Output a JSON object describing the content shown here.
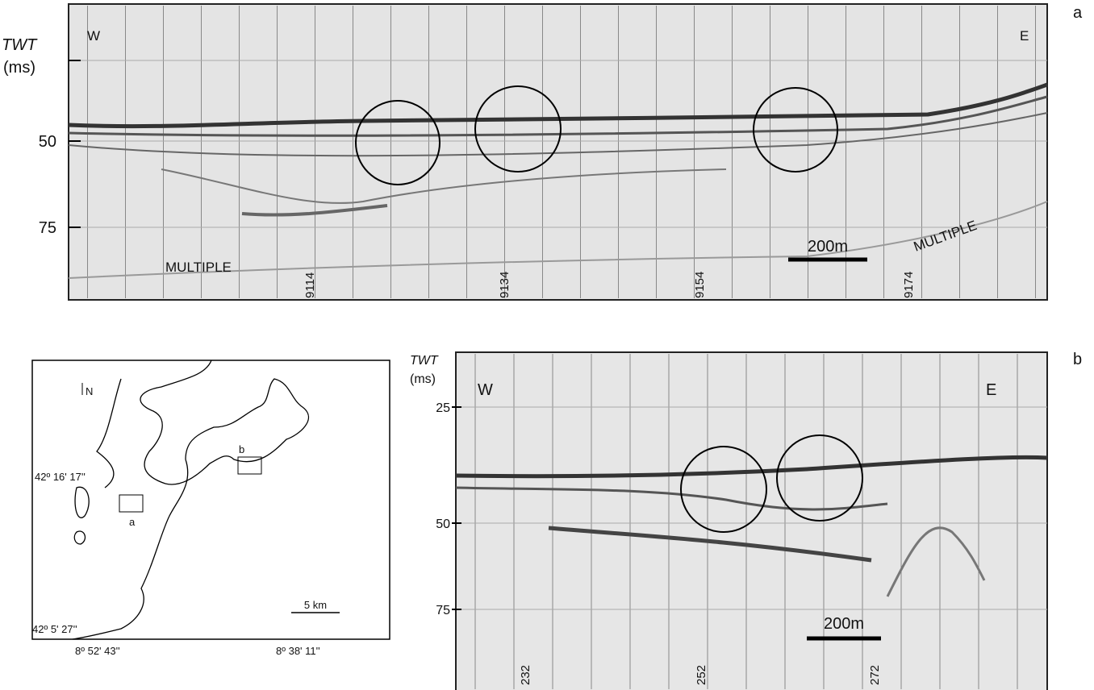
{
  "panel_a": {
    "letter": "a",
    "axis_title": "TWT",
    "axis_unit": "(ms)",
    "ticks": [
      "50",
      "75"
    ],
    "west": "W",
    "east": "E",
    "multiple_left": "MULTIPLE",
    "multiple_right": "MULTIPLE",
    "shotpoints": [
      "9114",
      "9134",
      "9154",
      "9174"
    ],
    "scale": "200m"
  },
  "panel_b": {
    "letter": "b",
    "axis_title": "TWT",
    "axis_unit": "(ms)",
    "ticks": [
      "25",
      "50",
      "75"
    ],
    "west": "W",
    "east": "E",
    "shotpoints": [
      "232",
      "252",
      "272"
    ],
    "scale": "200m"
  },
  "map": {
    "north": "N",
    "lat_top": "42º 16' 17''",
    "lat_bottom": "42º 5' 27''",
    "lon_left": "8º 52' 43''",
    "lon_right": "8º 38' 11''",
    "scale": "5 km",
    "site_a": "a",
    "site_b": "b"
  }
}
